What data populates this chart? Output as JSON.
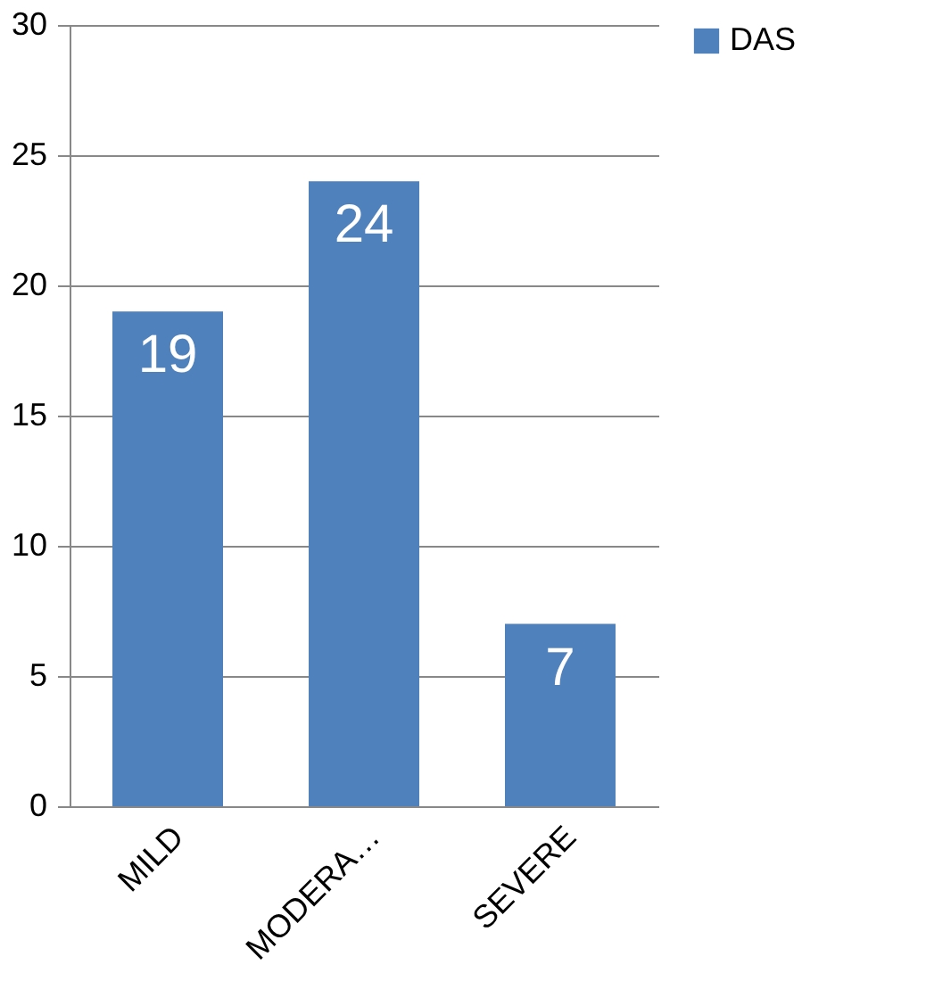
{
  "chart_data": {
    "type": "bar",
    "categories": [
      "MILD",
      "MODERA…",
      "SEVERE"
    ],
    "series": [
      {
        "name": "DAS",
        "color": "#4f81bd",
        "values": [
          19,
          24,
          7
        ]
      }
    ],
    "ylim": [
      0,
      30
    ],
    "yticks": [
      0,
      5,
      10,
      15,
      20,
      25,
      30
    ],
    "grid": "y",
    "legend": "right",
    "data_labels": true
  }
}
